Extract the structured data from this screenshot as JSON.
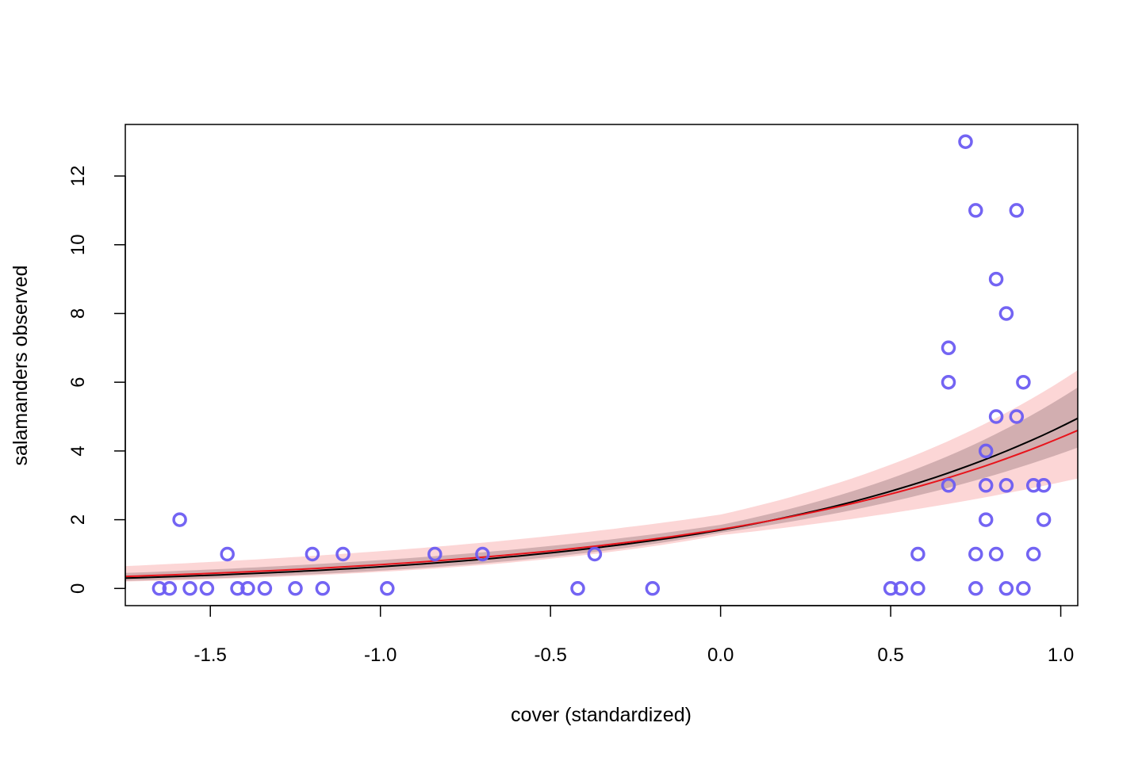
{
  "chart_data": {
    "type": "scatter",
    "title": "",
    "xlabel": "cover (standardized)",
    "ylabel": "salamanders observed",
    "xlim": [
      -1.75,
      1.05
    ],
    "ylim": [
      -0.5,
      13.5
    ],
    "x_ticks": [
      -1.5,
      -1.0,
      -0.5,
      0.0,
      0.5,
      1.0
    ],
    "x_tick_labels": [
      "-1.5",
      "-1.0",
      "-0.5",
      "0.0",
      "0.5",
      "1.0"
    ],
    "y_ticks": [
      0,
      2,
      4,
      6,
      8,
      10,
      12
    ],
    "y_tick_labels": [
      "0",
      "2",
      "4",
      "6",
      "8",
      "10",
      "12"
    ],
    "grid": false,
    "colors": {
      "points": "#6b5cf2",
      "black_curve": "#000000",
      "red_curve": "#e8141c",
      "wide_band": "#fcd6d6",
      "narrow_band": "#d2aeb0"
    },
    "points": [
      {
        "x": -1.65,
        "y": 0
      },
      {
        "x": -1.62,
        "y": 0
      },
      {
        "x": -1.59,
        "y": 2
      },
      {
        "x": -1.56,
        "y": 0
      },
      {
        "x": -1.51,
        "y": 0
      },
      {
        "x": -1.45,
        "y": 1
      },
      {
        "x": -1.42,
        "y": 0
      },
      {
        "x": -1.39,
        "y": 0
      },
      {
        "x": -1.34,
        "y": 0
      },
      {
        "x": -1.25,
        "y": 0
      },
      {
        "x": -1.2,
        "y": 1
      },
      {
        "x": -1.17,
        "y": 0
      },
      {
        "x": -1.11,
        "y": 1
      },
      {
        "x": -0.98,
        "y": 0
      },
      {
        "x": -0.84,
        "y": 1
      },
      {
        "x": -0.7,
        "y": 1
      },
      {
        "x": -0.42,
        "y": 0
      },
      {
        "x": -0.37,
        "y": 1
      },
      {
        "x": -0.2,
        "y": 0
      },
      {
        "x": 0.5,
        "y": 0
      },
      {
        "x": 0.53,
        "y": 0
      },
      {
        "x": 0.58,
        "y": 1
      },
      {
        "x": 0.58,
        "y": 0
      },
      {
        "x": 0.67,
        "y": 7
      },
      {
        "x": 0.67,
        "y": 6
      },
      {
        "x": 0.67,
        "y": 3
      },
      {
        "x": 0.72,
        "y": 13
      },
      {
        "x": 0.75,
        "y": 11
      },
      {
        "x": 0.75,
        "y": 1
      },
      {
        "x": 0.75,
        "y": 0
      },
      {
        "x": 0.78,
        "y": 4
      },
      {
        "x": 0.78,
        "y": 3
      },
      {
        "x": 0.78,
        "y": 2
      },
      {
        "x": 0.81,
        "y": 9
      },
      {
        "x": 0.81,
        "y": 5
      },
      {
        "x": 0.81,
        "y": 1
      },
      {
        "x": 0.84,
        "y": 8
      },
      {
        "x": 0.84,
        "y": 3
      },
      {
        "x": 0.84,
        "y": 0
      },
      {
        "x": 0.87,
        "y": 11
      },
      {
        "x": 0.87,
        "y": 5
      },
      {
        "x": 0.89,
        "y": 6
      },
      {
        "x": 0.89,
        "y": 0
      },
      {
        "x": 0.92,
        "y": 3
      },
      {
        "x": 0.92,
        "y": 1
      },
      {
        "x": 0.95,
        "y": 3
      },
      {
        "x": 0.95,
        "y": 2
      }
    ],
    "black_curve": {
      "x": [
        -1.75,
        0.0,
        1.05
      ],
      "y": [
        0.3,
        1.7,
        4.95
      ]
    },
    "red_curve": {
      "x": [
        -1.75,
        0.0,
        1.05
      ],
      "y": [
        0.35,
        1.72,
        4.6
      ]
    },
    "wide_band": {
      "x": [
        -1.75,
        0.0,
        1.05
      ],
      "lower": [
        0.2,
        1.55,
        3.2
      ],
      "upper": [
        0.65,
        2.15,
        6.35
      ]
    },
    "narrow_band": {
      "x": [
        -1.75,
        0.0,
        1.05
      ],
      "lower": [
        0.22,
        1.62,
        4.1
      ],
      "upper": [
        0.45,
        1.85,
        5.85
      ]
    }
  }
}
